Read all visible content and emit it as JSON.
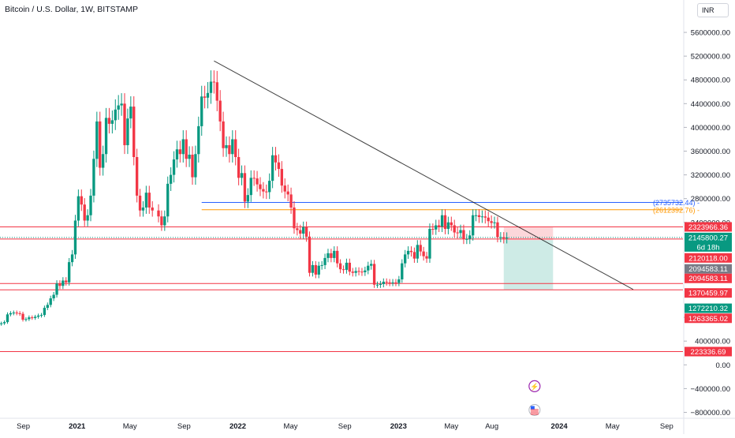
{
  "title": "Bitcoin / U.S. Dollar, 1W, BITSTAMP",
  "currency_button": "INR",
  "chart_data": {
    "type": "candlestick",
    "y_ticks": [
      {
        "v": 5600000,
        "label": "5600000.00"
      },
      {
        "v": 5200000,
        "label": "5200000.00"
      },
      {
        "v": 4800000,
        "label": "4800000.00"
      },
      {
        "v": 4400000,
        "label": "4400000.00"
      },
      {
        "v": 4000000,
        "label": "4000000.00"
      },
      {
        "v": 3600000,
        "label": "3600000.00"
      },
      {
        "v": 3200000,
        "label": "3200000.00"
      },
      {
        "v": 2800000,
        "label": "2800000.00"
      },
      {
        "v": 2400000,
        "label": "2400000.00"
      },
      {
        "v": 800000,
        "label": "800000.00"
      },
      {
        "v": 400000,
        "label": "400000.00"
      },
      {
        "v": 0,
        "label": "0.00"
      },
      {
        "v": -400000,
        "label": "−400000.00"
      },
      {
        "v": -800000,
        "label": "−800000.00"
      }
    ],
    "ylim": [
      -900000,
      5800000
    ],
    "x_ticks": [
      {
        "label": "Sep",
        "date": "2020-09-01",
        "bold": false
      },
      {
        "label": "2021",
        "date": "2021-01-01",
        "bold": true
      },
      {
        "label": "May",
        "date": "2021-05-01",
        "bold": false
      },
      {
        "label": "Sep",
        "date": "2021-09-01",
        "bold": false
      },
      {
        "label": "2022",
        "date": "2022-01-01",
        "bold": true
      },
      {
        "label": "May",
        "date": "2022-05-01",
        "bold": false
      },
      {
        "label": "Sep",
        "date": "2022-09-01",
        "bold": false
      },
      {
        "label": "2023",
        "date": "2023-01-01",
        "bold": true
      },
      {
        "label": "May",
        "date": "2023-05-01",
        "bold": false
      },
      {
        "label": "Aug",
        "date": "2023-08-01",
        "bold": false
      },
      {
        "label": "2024",
        "date": "2024-01-01",
        "bold": true
      },
      {
        "label": "May",
        "date": "2024-05-01",
        "bold": false
      },
      {
        "label": "Sep",
        "date": "2024-09-01",
        "bold": false
      }
    ],
    "xlim": [
      "2020-07-10",
      "2024-10-08"
    ],
    "up_color": "#089981",
    "down_color": "#f23645",
    "candles": [
      [
        "2020-07-13",
        700000
      ],
      [
        "2020-07-20",
        720000
      ],
      [
        "2020-07-27",
        850000
      ],
      [
        "2020-08-03",
        870000
      ],
      [
        "2020-08-10",
        880000
      ],
      [
        "2020-08-17",
        870000
      ],
      [
        "2020-08-24",
        860000
      ],
      [
        "2020-08-31",
        760000
      ],
      [
        "2020-09-07",
        770000
      ],
      [
        "2020-09-14",
        800000
      ],
      [
        "2020-09-21",
        790000
      ],
      [
        "2020-09-28",
        810000
      ],
      [
        "2020-10-05",
        830000
      ],
      [
        "2020-10-12",
        840000
      ],
      [
        "2020-10-19",
        960000
      ],
      [
        "2020-10-26",
        1010000
      ],
      [
        "2020-11-02",
        1120000
      ],
      [
        "2020-11-09",
        1180000
      ],
      [
        "2020-11-16",
        1370000
      ],
      [
        "2020-11-23",
        1330000
      ],
      [
        "2020-11-30",
        1420000
      ],
      [
        "2020-12-07",
        1390000
      ],
      [
        "2020-12-14",
        1730000
      ],
      [
        "2020-12-21",
        1860000
      ],
      [
        "2020-12-28",
        2430000
      ],
      [
        "2021-01-04",
        2840000
      ],
      [
        "2021-01-11",
        2700000
      ],
      [
        "2021-01-18",
        2430000
      ],
      [
        "2021-01-25",
        2520000
      ],
      [
        "2021-02-01",
        2850000
      ],
      [
        "2021-02-08",
        3470000
      ],
      [
        "2021-02-15",
        4100000
      ],
      [
        "2021-02-22",
        3320000
      ],
      [
        "2021-03-01",
        3550000
      ],
      [
        "2021-03-08",
        4160000
      ],
      [
        "2021-03-15",
        4060000
      ],
      [
        "2021-03-22",
        4120000
      ],
      [
        "2021-03-29",
        4300000
      ],
      [
        "2021-04-05",
        4370000
      ],
      [
        "2021-04-12",
        4400000
      ],
      [
        "2021-04-19",
        3700000
      ],
      [
        "2021-04-26",
        4150000
      ],
      [
        "2021-05-03",
        4350000
      ],
      [
        "2021-05-10",
        3500000
      ],
      [
        "2021-05-17",
        2850000
      ],
      [
        "2021-05-24",
        2600000
      ],
      [
        "2021-05-31",
        2650000
      ],
      [
        "2021-06-07",
        2900000
      ],
      [
        "2021-06-14",
        2650000
      ],
      [
        "2021-06-21",
        2600000
      ],
      [
        "2021-07-05",
        2500000
      ],
      [
        "2021-07-12",
        2350000
      ],
      [
        "2021-07-19",
        2500000
      ],
      [
        "2021-07-26",
        3050000
      ],
      [
        "2021-08-02",
        3200000
      ],
      [
        "2021-08-09",
        3460000
      ],
      [
        "2021-08-16",
        3630000
      ],
      [
        "2021-08-23",
        3550000
      ],
      [
        "2021-08-30",
        3800000
      ],
      [
        "2021-09-06",
        3470000
      ],
      [
        "2021-09-13",
        3540000
      ],
      [
        "2021-09-20",
        3160000
      ],
      [
        "2021-09-27",
        3550000
      ],
      [
        "2021-10-04",
        4020000
      ],
      [
        "2021-10-11",
        4520000
      ],
      [
        "2021-10-18",
        4500000
      ],
      [
        "2021-10-25",
        4580000
      ],
      [
        "2021-11-01",
        4770000
      ],
      [
        "2021-11-08",
        4760000
      ],
      [
        "2021-11-15",
        4450000
      ],
      [
        "2021-11-22",
        4100000
      ],
      [
        "2021-11-29",
        3650000
      ],
      [
        "2021-12-06",
        3700000
      ],
      [
        "2021-12-13",
        3550000
      ],
      [
        "2021-12-20",
        3800000
      ],
      [
        "2021-12-27",
        3500000
      ],
      [
        "2022-01-03",
        3150000
      ],
      [
        "2022-01-10",
        3230000
      ],
      [
        "2022-01-17",
        2750000
      ],
      [
        "2022-01-24",
        2860000
      ],
      [
        "2022-01-31",
        3150000
      ],
      [
        "2022-02-07",
        3140000
      ],
      [
        "2022-02-14",
        3040000
      ],
      [
        "2022-02-21",
        2960000
      ],
      [
        "2022-02-28",
        2920000
      ],
      [
        "2022-03-07",
        2910000
      ],
      [
        "2022-03-14",
        3100000
      ],
      [
        "2022-03-21",
        3530000
      ],
      [
        "2022-03-28",
        3410000
      ],
      [
        "2022-04-04",
        3300000
      ],
      [
        "2022-04-11",
        3020000
      ],
      [
        "2022-04-18",
        2920000
      ],
      [
        "2022-04-25",
        2870000
      ],
      [
        "2022-05-02",
        2650000
      ],
      [
        "2022-05-09",
        2300000
      ],
      [
        "2022-05-16",
        2270000
      ],
      [
        "2022-05-23",
        2210000
      ],
      [
        "2022-05-30",
        2320000
      ],
      [
        "2022-06-06",
        2160000
      ],
      [
        "2022-06-13",
        1550000
      ],
      [
        "2022-06-20",
        1680000
      ],
      [
        "2022-06-27",
        1520000
      ],
      [
        "2022-07-04",
        1670000
      ],
      [
        "2022-07-11",
        1680000
      ],
      [
        "2022-07-18",
        1800000
      ],
      [
        "2022-07-25",
        1880000
      ],
      [
        "2022-08-01",
        1800000
      ],
      [
        "2022-08-08",
        1920000
      ],
      [
        "2022-08-15",
        1710000
      ],
      [
        "2022-08-22",
        1610000
      ],
      [
        "2022-08-29",
        1600000
      ],
      [
        "2022-09-05",
        1720000
      ],
      [
        "2022-09-12",
        1570000
      ],
      [
        "2022-09-19",
        1550000
      ],
      [
        "2022-09-26",
        1580000
      ],
      [
        "2022-10-03",
        1570000
      ],
      [
        "2022-10-10",
        1560000
      ],
      [
        "2022-10-17",
        1590000
      ],
      [
        "2022-10-24",
        1670000
      ],
      [
        "2022-10-31",
        1700000
      ],
      [
        "2022-11-07",
        1350000
      ],
      [
        "2022-11-14",
        1350000
      ],
      [
        "2022-11-21",
        1360000
      ],
      [
        "2022-11-28",
        1400000
      ],
      [
        "2022-12-05",
        1390000
      ],
      [
        "2022-12-12",
        1380000
      ],
      [
        "2022-12-19",
        1390000
      ],
      [
        "2022-12-26",
        1380000
      ],
      [
        "2023-01-02",
        1440000
      ],
      [
        "2023-01-09",
        1710000
      ],
      [
        "2023-01-16",
        1860000
      ],
      [
        "2023-01-23",
        1920000
      ],
      [
        "2023-01-30",
        1900000
      ],
      [
        "2023-02-06",
        1790000
      ],
      [
        "2023-02-13",
        2020000
      ],
      [
        "2023-02-20",
        1910000
      ],
      [
        "2023-02-27",
        1830000
      ],
      [
        "2023-03-06",
        1790000
      ],
      [
        "2023-03-13",
        2290000
      ],
      [
        "2023-03-20",
        2280000
      ],
      [
        "2023-03-27",
        2350000
      ],
      [
        "2023-04-03",
        2330000
      ],
      [
        "2023-04-10",
        2520000
      ],
      [
        "2023-04-17",
        2290000
      ],
      [
        "2023-04-24",
        2400000
      ],
      [
        "2023-05-01",
        2350000
      ],
      [
        "2023-05-08",
        2230000
      ],
      [
        "2023-05-15",
        2220000
      ],
      [
        "2023-05-22",
        2270000
      ],
      [
        "2023-05-29",
        2120000
      ],
      [
        "2023-06-05",
        2120000
      ],
      [
        "2023-06-12",
        2180000
      ],
      [
        "2023-06-19",
        2520000
      ],
      [
        "2023-06-26",
        2520000
      ],
      [
        "2023-07-03",
        2490000
      ],
      [
        "2023-07-10",
        2500000
      ],
      [
        "2023-07-17",
        2480000
      ],
      [
        "2023-07-24",
        2420000
      ],
      [
        "2023-07-31",
        2390000
      ],
      [
        "2023-08-07",
        2400000
      ],
      [
        "2023-08-14",
        2150000
      ],
      [
        "2023-08-21",
        2150000
      ],
      [
        "2023-08-28",
        2130000
      ],
      [
        "2023-09-04",
        2146000
      ]
    ],
    "trendline": {
      "from": [
        "2021-11-08",
        5120000
      ],
      "to": [
        "2024-06-17",
        1270000
      ],
      "color": "#000000"
    },
    "hlines": [
      {
        "value": 2735732.44,
        "label": "(2735732.44)",
        "color": "#2962ff",
        "style": "solid"
      },
      {
        "value": 2612392.76,
        "label": "(2612392.76)",
        "color": "#ff9800",
        "style": "solid"
      },
      {
        "value": 2323966.36,
        "label": "2323966.36",
        "color": "#f23645",
        "style": "solid",
        "tag_bg": "#f23645"
      },
      {
        "value": 2145800.27,
        "label": "2145800.27",
        "color": "#089981",
        "style": "dotted",
        "tag_bg": "#089981",
        "sub": "6d 18h"
      },
      {
        "value": 2120118.0,
        "label": "2120118.00",
        "color": "#f23645",
        "style": "solid",
        "tag_bg": "#f23645"
      },
      {
        "value": 2094583.11,
        "label": "2094583.11",
        "color": "#787b86",
        "style": "none",
        "tag_bg": "#787b86"
      },
      {
        "value": 2094583.11,
        "label": "2094583.11",
        "color": "#f23645",
        "style": "none",
        "tag_bg": "#f23645"
      },
      {
        "value": 1370459.97,
        "label": "1370459.97",
        "color": "#f23645",
        "style": "solid",
        "tag_bg": "#f23645"
      },
      {
        "value": 1272210.32,
        "label": "1272210.32",
        "color": "#089981",
        "style": "none",
        "tag_bg": "#089981"
      },
      {
        "value": 1263365.02,
        "label": "1263365.02",
        "color": "#f23645",
        "style": "solid",
        "tag_bg": "#f23645"
      },
      {
        "value": 223336.69,
        "label": "223336.69",
        "color": "#f23645",
        "style": "solid",
        "tag_bg": "#f23645"
      }
    ],
    "position": {
      "start": "2023-08-28",
      "end": "2023-12-18",
      "entry": 2100000,
      "stop": 2330000,
      "target": 1263365
    },
    "event_icons": [
      {
        "name": "lightning-icon",
        "date": "2023-11-06",
        "value": -360000,
        "glyph": "⚡",
        "color": "#9c27b0"
      },
      {
        "name": "us-flag-icon",
        "date": "2023-11-06",
        "value": -760000,
        "glyph": "",
        "color": "#f23645"
      }
    ]
  }
}
